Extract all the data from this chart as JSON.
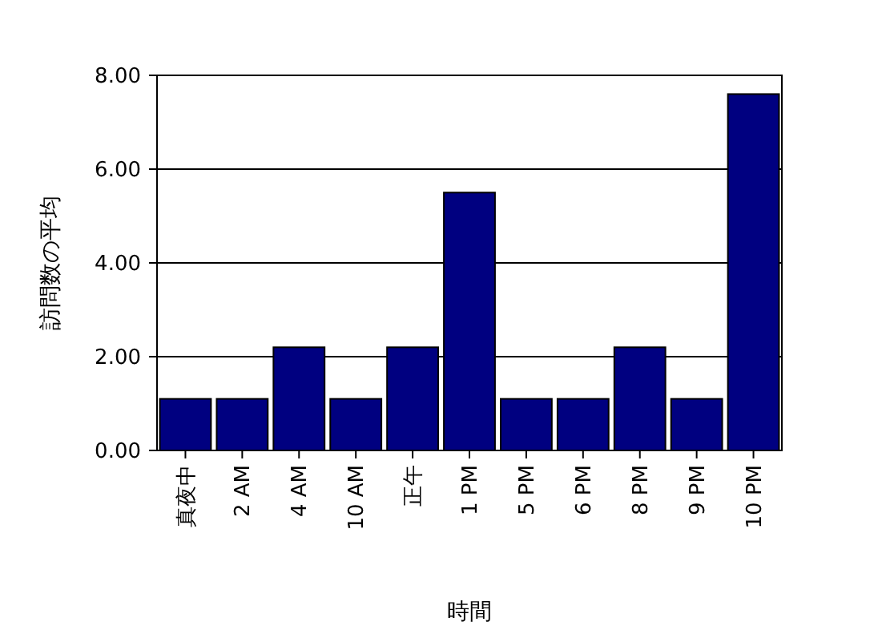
{
  "chart_data": {
    "type": "bar",
    "xlabel": "時間",
    "ylabel": "訪問数の平均",
    "categories": [
      "真夜中",
      "2 AM",
      "4 AM",
      "10 AM",
      "正午",
      "1 PM",
      "5 PM",
      "6 PM",
      "8 PM",
      "9 PM",
      "10 PM"
    ],
    "values": [
      1.1,
      1.1,
      2.2,
      1.1,
      2.2,
      5.5,
      1.1,
      1.1,
      2.2,
      1.1,
      7.6
    ],
    "color": "#000080",
    "ylim": [
      0,
      8
    ],
    "yticks": [
      {
        "value": 0,
        "label": "0.00"
      },
      {
        "value": 2,
        "label": "2.00"
      },
      {
        "value": 4,
        "label": "4.00"
      },
      {
        "value": 6,
        "label": "6.00"
      },
      {
        "value": 8,
        "label": "8.00"
      }
    ],
    "grid": "y"
  }
}
